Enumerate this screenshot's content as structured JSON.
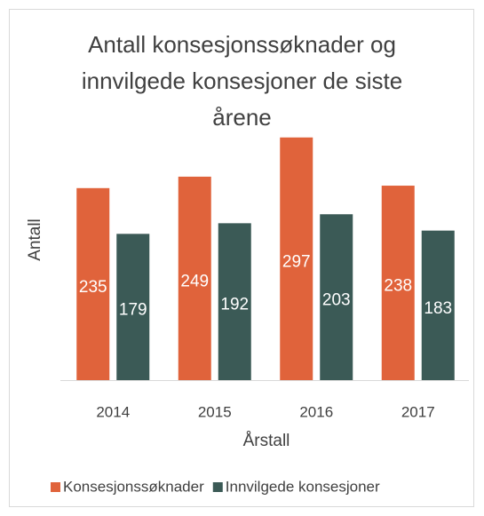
{
  "chart_data": {
    "type": "bar",
    "title": "Antall konsesjonssøknader og innvilgede konsesjoner de siste årene",
    "x_label": "Årstall",
    "y_label": "Antall",
    "categories": [
      "2014",
      "2015",
      "2016",
      "2017"
    ],
    "series": [
      {
        "name": "Konsesjonssøknader",
        "color": "#e0633b",
        "values": [
          235,
          249,
          297,
          238
        ]
      },
      {
        "name": "Innvilgede konsesjoner",
        "color": "#3b5a56",
        "values": [
          179,
          192,
          203,
          183
        ]
      }
    ],
    "ylim": [
      0,
      300
    ],
    "legend": "bottom"
  }
}
